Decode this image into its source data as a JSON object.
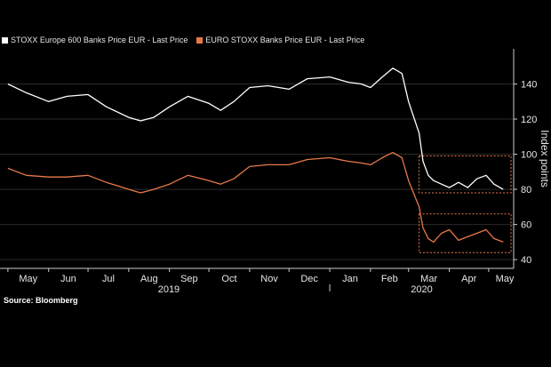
{
  "chart_data": {
    "type": "line",
    "ylabel": "Index points",
    "ylim": [
      35,
      160
    ],
    "yticks": [
      40,
      60,
      80,
      100,
      120,
      140
    ],
    "grid": true,
    "legend_placement": "top-left",
    "colors": {
      "s1": "#ffffff",
      "s2": "#e8784a",
      "box": "#e8784a",
      "axis": "#cccccc",
      "grid": "#2a2a2a"
    },
    "x_month_labels": [
      "May",
      "Jun",
      "Jul",
      "Aug",
      "Sep",
      "Oct",
      "Nov",
      "Dec",
      "Jan",
      "Feb",
      "Mar",
      "Apr",
      "May"
    ],
    "x_year_labels": [
      "2019",
      "2020"
    ],
    "series": [
      {
        "name": "STOXX Europe 600 Banks Price EUR - Last Price",
        "x": [
          "2019-05-01",
          "2019-05-15",
          "2019-06-01",
          "2019-06-15",
          "2019-07-01",
          "2019-07-15",
          "2019-08-01",
          "2019-08-10",
          "2019-08-20",
          "2019-09-01",
          "2019-09-15",
          "2019-10-01",
          "2019-10-10",
          "2019-10-20",
          "2019-11-01",
          "2019-11-15",
          "2019-12-01",
          "2019-12-15",
          "2020-01-01",
          "2020-01-15",
          "2020-01-25",
          "2020-02-01",
          "2020-02-10",
          "2020-02-18",
          "2020-02-25",
          "2020-03-01",
          "2020-03-09",
          "2020-03-12",
          "2020-03-16",
          "2020-03-20",
          "2020-03-26",
          "2020-04-01",
          "2020-04-08",
          "2020-04-15",
          "2020-04-22",
          "2020-04-29",
          "2020-05-05",
          "2020-05-12"
        ],
        "values": [
          140,
          135,
          130,
          133,
          134,
          127,
          121,
          119,
          121,
          127,
          133,
          129,
          125,
          130,
          138,
          139,
          137,
          143,
          144,
          141,
          140,
          138,
          144,
          149,
          146,
          130,
          112,
          96,
          88,
          85,
          83,
          81,
          84,
          81,
          86,
          88,
          83,
          80
        ]
      },
      {
        "name": "EURO STOXX Banks Price EUR - Last Price",
        "x": [
          "2019-05-01",
          "2019-05-15",
          "2019-06-01",
          "2019-06-15",
          "2019-07-01",
          "2019-07-15",
          "2019-08-01",
          "2019-08-10",
          "2019-08-20",
          "2019-09-01",
          "2019-09-15",
          "2019-10-01",
          "2019-10-10",
          "2019-10-20",
          "2019-11-01",
          "2019-11-15",
          "2019-12-01",
          "2019-12-15",
          "2020-01-01",
          "2020-01-15",
          "2020-01-25",
          "2020-02-01",
          "2020-02-10",
          "2020-02-18",
          "2020-02-25",
          "2020-03-01",
          "2020-03-09",
          "2020-03-12",
          "2020-03-16",
          "2020-03-20",
          "2020-03-26",
          "2020-04-01",
          "2020-04-08",
          "2020-04-15",
          "2020-04-22",
          "2020-04-29",
          "2020-05-05",
          "2020-05-12"
        ],
        "values": [
          92,
          88,
          87,
          87,
          88,
          84,
          80,
          78,
          80,
          83,
          88,
          85,
          83,
          86,
          93,
          94,
          94,
          97,
          98,
          96,
          95,
          94,
          98,
          101,
          98,
          85,
          70,
          58,
          52,
          50,
          55,
          57,
          51,
          53,
          55,
          57,
          52,
          50
        ]
      }
    ],
    "annotations": [
      {
        "type": "box",
        "series": "STOXX Europe 600 Banks Price EUR - Last Price",
        "x": [
          "2020-03-09",
          "2020-05-18"
        ],
        "y": [
          78,
          99
        ]
      },
      {
        "type": "box",
        "series": "EURO STOXX Banks Price EUR - Last Price",
        "x": [
          "2020-03-09",
          "2020-05-18"
        ],
        "y": [
          44,
          66
        ]
      }
    ]
  },
  "legend": {
    "s1_label": "STOXX Europe 600 Banks Price EUR - Last Price",
    "s2_label": "EURO STOXX Banks Price EUR - Last Price"
  },
  "footer": {
    "source": "Source: Bloomberg"
  }
}
